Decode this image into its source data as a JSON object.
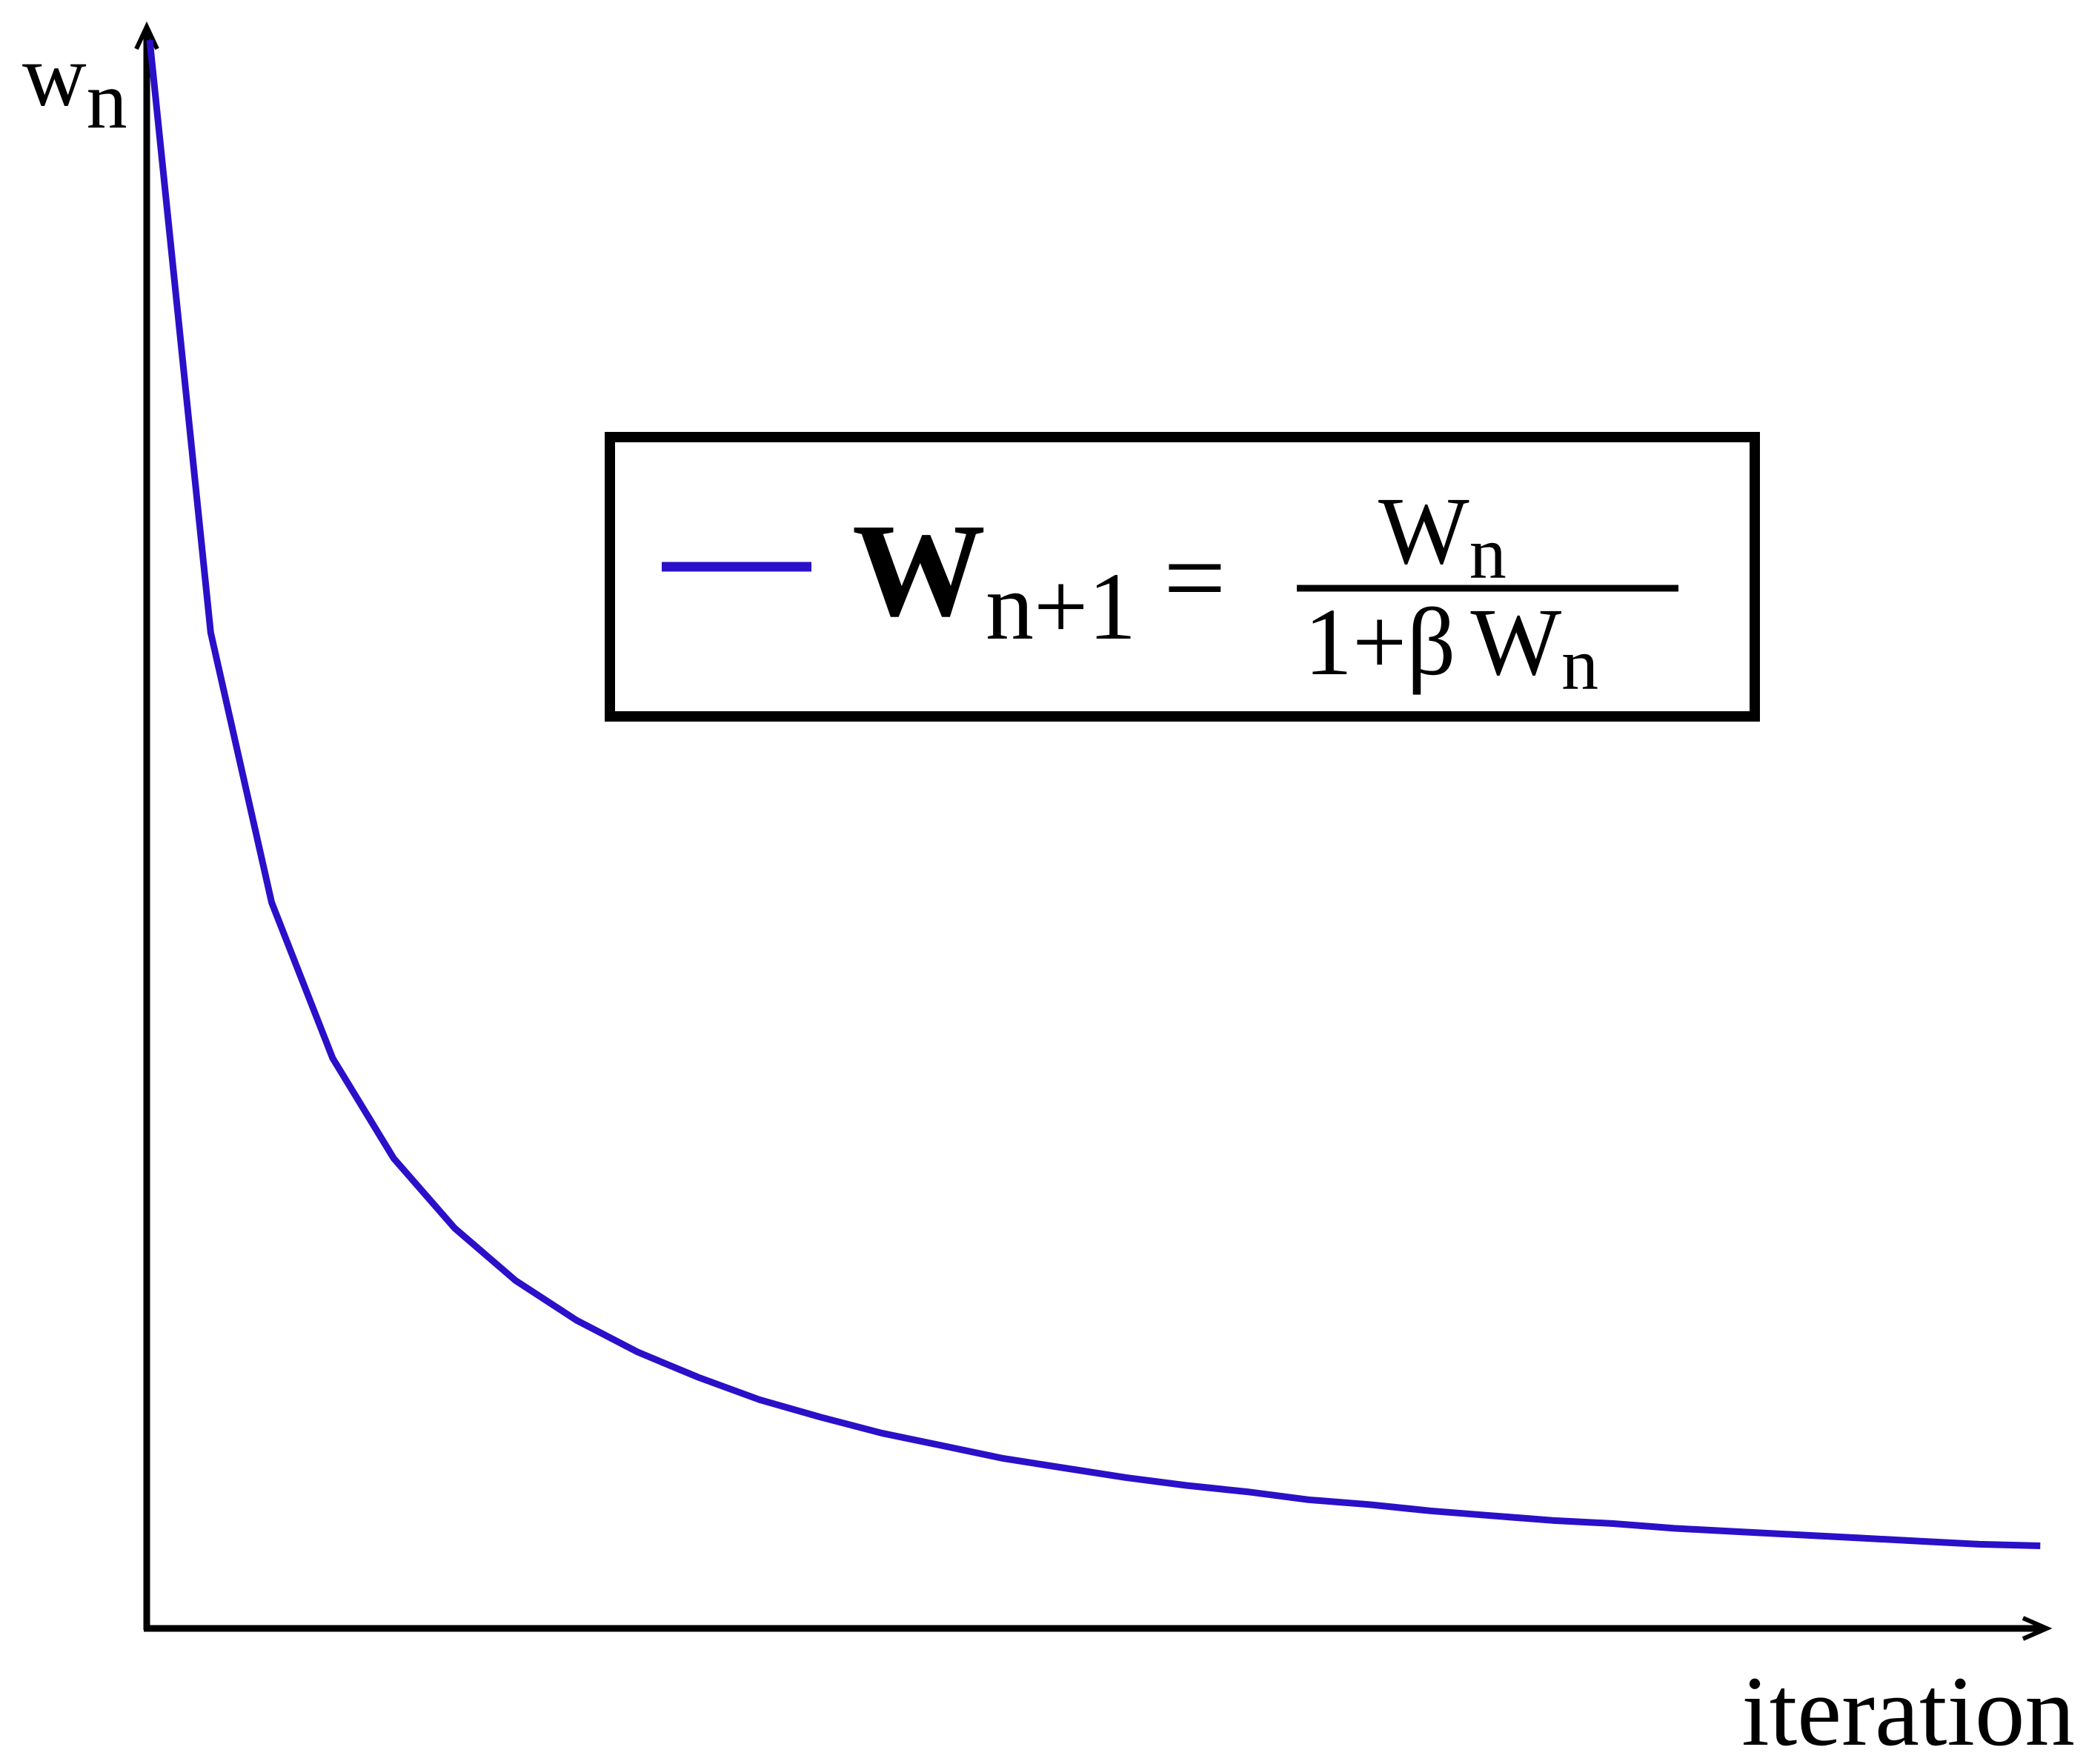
{
  "chart_data": {
    "type": "line",
    "title": "",
    "xlabel": "iteration",
    "ylabel": "w",
    "ylabel_subscript": "n",
    "grid": false,
    "ticks": false,
    "xlim": [
      0,
      31.9
    ],
    "ylim": [
      0,
      1.01
    ],
    "series": [
      {
        "name": "W_{n+1} = W_n / (1 + β W_n)",
        "color": "#2a10c8",
        "x": [
          0,
          1,
          2,
          3,
          4,
          5,
          6,
          7,
          8,
          9,
          10,
          11,
          12,
          13,
          14,
          15,
          16,
          17,
          18,
          19,
          20,
          21,
          22,
          23,
          24,
          25,
          26,
          27,
          28,
          29,
          30,
          31
        ],
        "y": [
          1,
          0.627,
          0.457,
          0.359,
          0.296,
          0.252,
          0.219,
          0.194,
          0.174,
          0.158,
          0.144,
          0.133,
          0.123,
          0.115,
          0.107,
          0.101,
          0.095,
          0.09,
          0.086,
          0.081,
          0.078,
          0.074,
          0.071,
          0.068,
          0.066,
          0.063,
          0.061,
          0.059,
          0.057,
          0.055,
          0.053,
          0.052
        ]
      }
    ],
    "legend": {
      "placement": "top-center",
      "lhs_main": "W",
      "lhs_sub": "n+1",
      "equals": "=",
      "numerator_main": "W",
      "numerator_sub": "n",
      "denominator_prefix": "1+β",
      "denominator_main": "W",
      "denominator_sub": "n"
    }
  }
}
